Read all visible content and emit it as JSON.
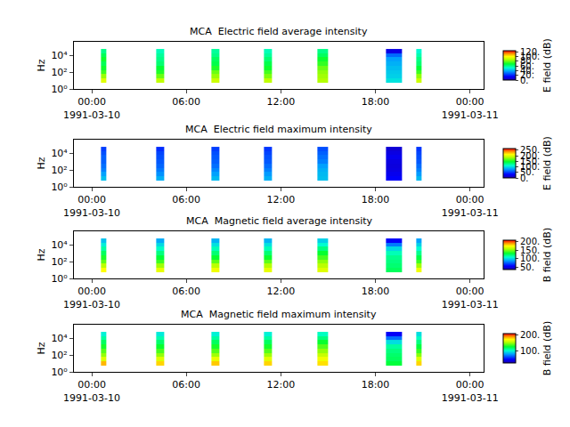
{
  "chart_data": [
    {
      "type": "heatmap",
      "title": "MCA  Electric field average intensity",
      "ylabel": "Hz",
      "colorbar_label": "E field (dB)",
      "log": "y",
      "x": [
        "1991-03-10 00:35",
        "1991-03-10 00:55",
        "1991-03-10 04:05",
        "1991-03-10 04:35",
        "1991-03-10 07:35",
        "1991-03-10 08:05",
        "1991-03-10 10:55",
        "1991-03-10 11:25",
        "1991-03-10 14:20",
        "1991-03-10 15:00",
        "1991-03-10 18:40",
        "1991-03-10 19:40",
        "1991-03-10 20:35",
        "1991-03-10 20:55"
      ],
      "y": [
        5.6,
        17.8,
        56.2,
        178,
        562,
        1780,
        5620,
        17800,
        56200
      ],
      "z": [
        [
          95,
          85,
          75,
          70,
          65,
          70,
          65,
          60
        ],
        null,
        [
          90,
          80,
          72,
          68,
          62,
          60,
          58,
          55
        ],
        null,
        [
          92,
          85,
          80,
          72,
          66,
          64,
          60,
          58
        ],
        null,
        [
          90,
          82,
          76,
          70,
          66,
          62,
          58,
          55
        ],
        null,
        [
          88,
          86,
          84,
          80,
          74,
          70,
          64,
          60
        ],
        null,
        [
          48,
          45,
          44,
          42,
          40,
          38,
          30,
          10
        ],
        null,
        [
          92,
          84,
          75,
          68,
          62,
          60,
          56,
          52
        ]
      ],
      "xlim": [
        "1991-03-09 22:52",
        "1991-03-11 00:52"
      ],
      "xticks": [
        {
          "value": "1991-03-10 00:00",
          "label": "00:00\n1991-03-10"
        },
        {
          "value": "1991-03-10 06:00",
          "label": "06:00"
        },
        {
          "value": "1991-03-10 12:00",
          "label": "12:00"
        },
        {
          "value": "1991-03-10 18:00",
          "label": "18:00"
        },
        {
          "value": "1991-03-11 00:00",
          "label": "00:00\n1991-03-11"
        }
      ],
      "ylim": [
        1,
        400000
      ],
      "yticks": [
        {
          "value": 1,
          "label": "10⁰"
        },
        {
          "value": 100,
          "label": "10²"
        },
        {
          "value": 10000,
          "label": "10⁴"
        }
      ],
      "zlim": [
        0,
        125
      ],
      "zticks": [
        {
          "value": 0,
          "label": "0."
        },
        {
          "value": 20,
          "label": "20."
        },
        {
          "value": 40,
          "label": "40."
        },
        {
          "value": 60,
          "label": "60."
        },
        {
          "value": 80,
          "label": "80."
        },
        {
          "value": 100,
          "label": "100."
        },
        {
          "value": 120,
          "label": "120."
        }
      ]
    },
    {
      "type": "heatmap",
      "title": "MCA  Electric field maximum intensity",
      "ylabel": "Hz",
      "colorbar_label": "E field (dB)",
      "log": "y",
      "x": [
        "1991-03-10 00:35",
        "1991-03-10 00:55",
        "1991-03-10 04:05",
        "1991-03-10 04:35",
        "1991-03-10 07:35",
        "1991-03-10 08:05",
        "1991-03-10 10:55",
        "1991-03-10 11:25",
        "1991-03-10 14:20",
        "1991-03-10 15:00",
        "1991-03-10 18:40",
        "1991-03-10 19:40",
        "1991-03-10 20:35",
        "1991-03-10 20:55"
      ],
      "y": [
        5.6,
        17.8,
        56.2,
        178,
        562,
        1780,
        5620,
        17800,
        56200
      ],
      "z": [
        [
          90,
          80,
          70,
          65,
          60,
          60,
          55,
          50
        ],
        null,
        [
          85,
          75,
          68,
          62,
          58,
          55,
          52,
          45
        ],
        null,
        [
          88,
          80,
          72,
          65,
          60,
          58,
          55,
          50
        ],
        null,
        [
          85,
          78,
          70,
          64,
          58,
          56,
          52,
          48
        ],
        null,
        [
          90,
          88,
          85,
          80,
          70,
          65,
          60,
          55
        ],
        null,
        [
          30,
          25,
          20,
          18,
          20,
          25,
          20,
          15
        ],
        null,
        [
          88,
          78,
          70,
          64,
          58,
          55,
          52,
          48
        ]
      ],
      "xlim": [
        "1991-03-09 22:52",
        "1991-03-11 00:52"
      ],
      "xticks": [
        {
          "value": "1991-03-10 00:00",
          "label": "00:00\n1991-03-10"
        },
        {
          "value": "1991-03-10 06:00",
          "label": "06:00"
        },
        {
          "value": "1991-03-10 12:00",
          "label": "12:00"
        },
        {
          "value": "1991-03-10 18:00",
          "label": "18:00"
        },
        {
          "value": "1991-03-11 00:00",
          "label": "00:00\n1991-03-11"
        }
      ],
      "ylim": [
        1,
        400000
      ],
      "yticks": [
        {
          "value": 1,
          "label": "10⁰"
        },
        {
          "value": 100,
          "label": "10²"
        },
        {
          "value": 10000,
          "label": "10⁴"
        }
      ],
      "zlim": [
        0,
        265
      ],
      "zticks": [
        {
          "value": 0,
          "label": "0."
        },
        {
          "value": 50,
          "label": "50."
        },
        {
          "value": 100,
          "label": "100."
        },
        {
          "value": 150,
          "label": "150."
        },
        {
          "value": 200,
          "label": "200."
        },
        {
          "value": 250,
          "label": "250."
        }
      ]
    },
    {
      "type": "heatmap",
      "title": "MCA  Magnetic field average intensity",
      "ylabel": "Hz",
      "colorbar_label": "B field (dB)",
      "log": "y",
      "x": [
        "1991-03-10 00:35",
        "1991-03-10 00:55",
        "1991-03-10 04:05",
        "1991-03-10 04:35",
        "1991-03-10 07:35",
        "1991-03-10 08:05",
        "1991-03-10 10:55",
        "1991-03-10 11:25",
        "1991-03-10 14:20",
        "1991-03-10 15:00",
        "1991-03-10 18:40",
        "1991-03-10 19:40",
        "1991-03-10 20:35",
        "1991-03-10 20:55"
      ],
      "y": [
        5.6,
        17.8,
        56.2,
        178,
        562,
        1780,
        5620,
        17800,
        56200
      ],
      "z": [
        [
          175,
          160,
          145,
          135,
          125,
          115,
          105,
          95
        ],
        null,
        [
          170,
          155,
          140,
          130,
          120,
          110,
          100,
          90
        ],
        null,
        [
          172,
          160,
          145,
          132,
          122,
          112,
          102,
          92
        ],
        null,
        [
          170,
          158,
          145,
          133,
          122,
          112,
          102,
          92
        ],
        null,
        [
          168,
          160,
          152,
          142,
          132,
          120,
          108,
          98
        ],
        null,
        [
          125,
          122,
          120,
          118,
          112,
          100,
          80,
          55
        ],
        null,
        [
          172,
          155,
          140,
          128,
          118,
          108,
          98,
          88
        ]
      ],
      "xlim": [
        "1991-03-09 22:52",
        "1991-03-11 00:52"
      ],
      "xticks": [
        {
          "value": "1991-03-10 00:00",
          "label": "00:00\n1991-03-10"
        },
        {
          "value": "1991-03-10 06:00",
          "label": "06:00"
        },
        {
          "value": "1991-03-10 12:00",
          "label": "12:00"
        },
        {
          "value": "1991-03-10 18:00",
          "label": "18:00"
        },
        {
          "value": "1991-03-11 00:00",
          "label": "00:00\n1991-03-11"
        }
      ],
      "ylim": [
        1,
        400000
      ],
      "yticks": [
        {
          "value": 1,
          "label": "10⁰"
        },
        {
          "value": 100,
          "label": "10²"
        },
        {
          "value": 10000,
          "label": "10⁴"
        }
      ],
      "zlim": [
        35,
        210
      ],
      "zticks": [
        {
          "value": 50,
          "label": "50."
        },
        {
          "value": 100,
          "label": "100."
        },
        {
          "value": 150,
          "label": "150."
        },
        {
          "value": 200,
          "label": "200."
        }
      ]
    },
    {
      "type": "heatmap",
      "title": "MCA  Magnetic field maximum intensity",
      "ylabel": "Hz",
      "colorbar_label": "B field (dB)",
      "log": "y",
      "x": [
        "1991-03-10 00:35",
        "1991-03-10 00:55",
        "1991-03-10 04:05",
        "1991-03-10 04:35",
        "1991-03-10 07:35",
        "1991-03-10 08:05",
        "1991-03-10 10:55",
        "1991-03-10 11:25",
        "1991-03-10 14:20",
        "1991-03-10 15:00",
        "1991-03-10 18:40",
        "1991-03-10 19:40",
        "1991-03-10 20:35",
        "1991-03-10 20:55"
      ],
      "y": [
        5.6,
        17.8,
        56.2,
        178,
        562,
        1780,
        5620,
        17800,
        56200
      ],
      "z": [
        [
          185,
          165,
          150,
          140,
          130,
          120,
          110,
          100
        ],
        null,
        [
          180,
          165,
          150,
          138,
          128,
          118,
          108,
          98
        ],
        null,
        [
          182,
          168,
          152,
          140,
          130,
          120,
          110,
          100
        ],
        null,
        [
          180,
          166,
          152,
          140,
          130,
          120,
          110,
          100
        ],
        null,
        [
          178,
          170,
          160,
          150,
          140,
          128,
          115,
          105
        ],
        null,
        [
          125,
          120,
          118,
          115,
          110,
          95,
          70,
          45
        ],
        null,
        [
          180,
          165,
          148,
          135,
          125,
          115,
          105,
          95
        ]
      ],
      "xlim": [
        "1991-03-09 22:52",
        "1991-03-11 00:52"
      ],
      "xticks": [
        {
          "value": "1991-03-10 00:00",
          "label": "00:00\n1991-03-10"
        },
        {
          "value": "1991-03-10 06:00",
          "label": "06:00"
        },
        {
          "value": "1991-03-10 12:00",
          "label": "12:00"
        },
        {
          "value": "1991-03-10 18:00",
          "label": "18:00"
        },
        {
          "value": "1991-03-11 00:00",
          "label": "00:00\n1991-03-11"
        }
      ],
      "ylim": [
        1,
        400000
      ],
      "yticks": [
        {
          "value": 1,
          "label": "10⁰"
        },
        {
          "value": 100,
          "label": "10²"
        },
        {
          "value": 10000,
          "label": "10⁴"
        }
      ],
      "zlim": [
        25,
        210
      ],
      "zticks": [
        {
          "value": 100,
          "label": "100."
        },
        {
          "value": 200,
          "label": "200."
        }
      ]
    }
  ]
}
